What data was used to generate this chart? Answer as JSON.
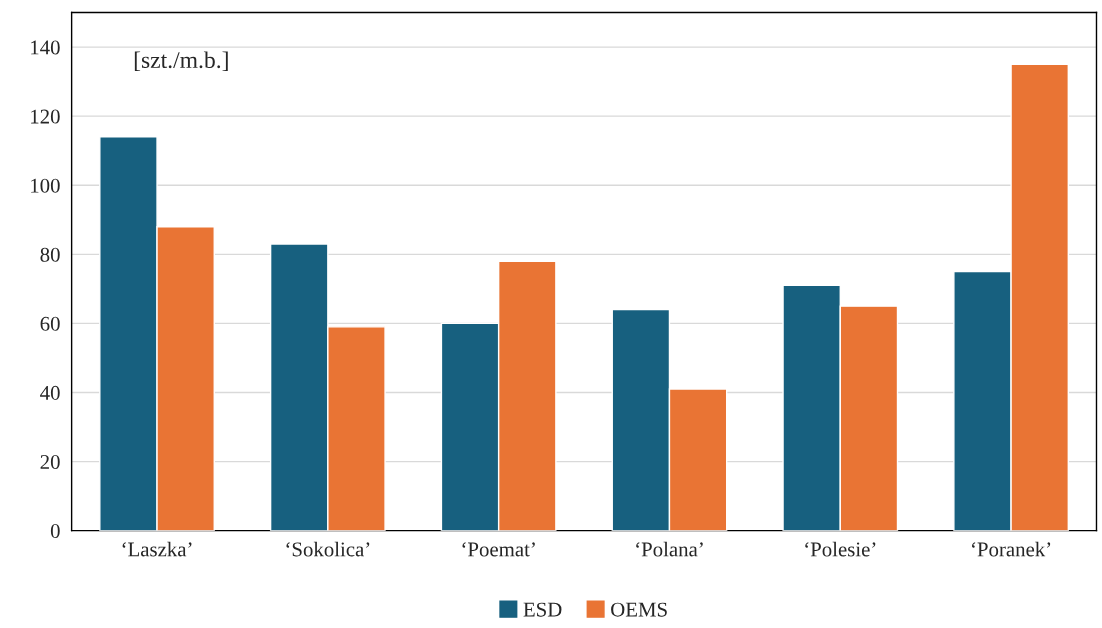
{
  "chart_data": {
    "type": "bar",
    "categories": [
      "‘Laszka’",
      "‘Sokolica’",
      "‘Poemat’",
      "‘Polana’",
      "‘Polesie’",
      "‘Poranek’"
    ],
    "series": [
      {
        "name": "ESD",
        "color": "#17607f",
        "values": [
          114,
          83,
          60,
          64,
          71,
          75
        ]
      },
      {
        "name": "OEMS",
        "color": "#e97434",
        "values": [
          88,
          59,
          78,
          41,
          65,
          135
        ]
      }
    ],
    "ylim": [
      0,
      150
    ],
    "yticks": [
      0,
      20,
      40,
      60,
      80,
      100,
      120,
      140
    ],
    "annotations": [
      "[szt./m.b.]"
    ],
    "grid": "y",
    "legend": "bottom"
  }
}
